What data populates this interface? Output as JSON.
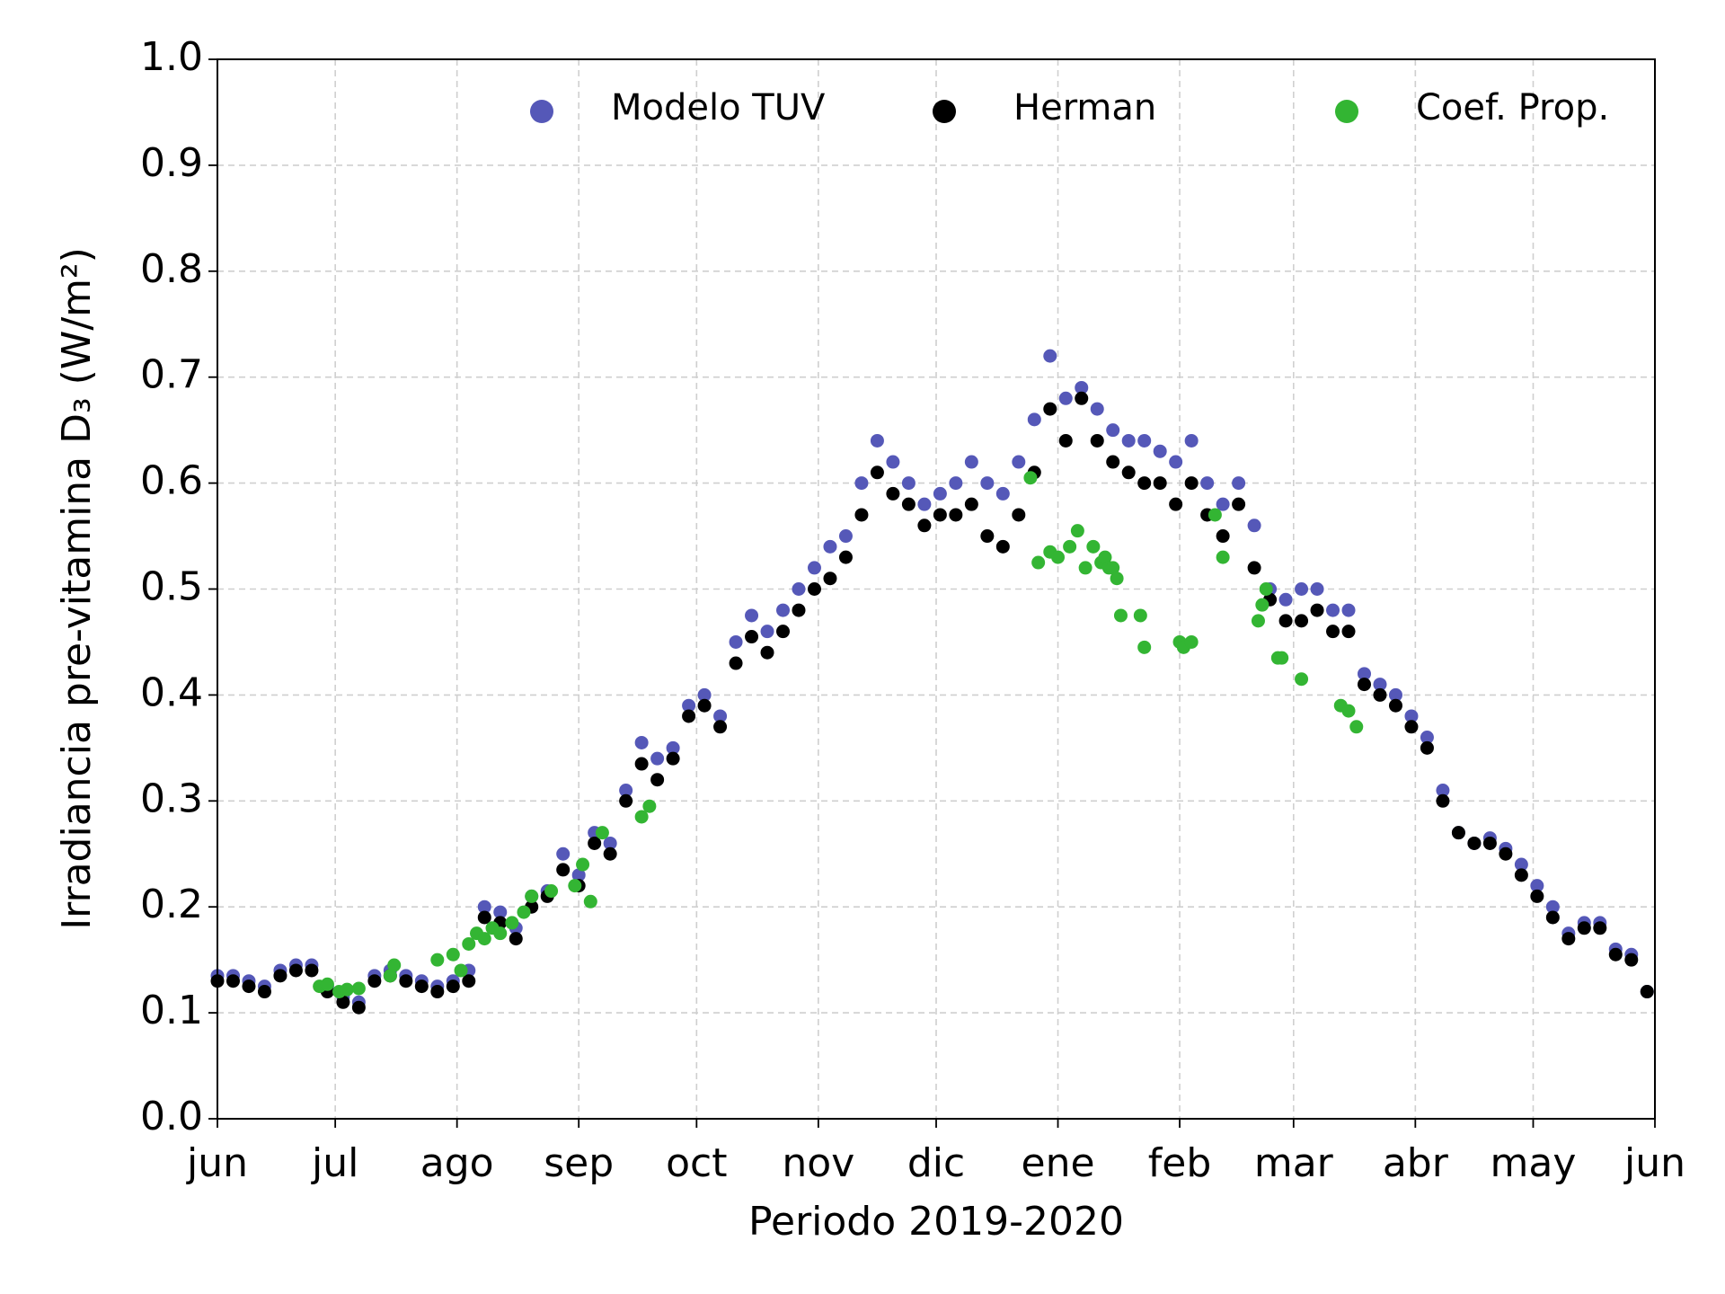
{
  "chart_data": {
    "type": "scatter",
    "x_label": "Periodo 2019-2020",
    "y_label": "Irradiancia pre-vitamina D₃ (W/m²)",
    "xlim": [
      0,
      366
    ],
    "ylim": [
      0,
      1.0
    ],
    "xticks": [
      {
        "value": 0,
        "label": "jun"
      },
      {
        "value": 30,
        "label": "jul"
      },
      {
        "value": 61,
        "label": "ago"
      },
      {
        "value": 92,
        "label": "sep"
      },
      {
        "value": 122,
        "label": "oct"
      },
      {
        "value": 153,
        "label": "nov"
      },
      {
        "value": 183,
        "label": "dic"
      },
      {
        "value": 214,
        "label": "ene"
      },
      {
        "value": 245,
        "label": "feb"
      },
      {
        "value": 274,
        "label": "mar"
      },
      {
        "value": 305,
        "label": "abr"
      },
      {
        "value": 335,
        "label": "may"
      },
      {
        "value": 366,
        "label": "jun"
      }
    ],
    "yticks": [
      {
        "value": 0,
        "label": "0.0"
      },
      0.1,
      0.2,
      0.3,
      0.4,
      0.5,
      0.6,
      0.7,
      0.8,
      0.9,
      {
        "value": 1,
        "label": "1.0"
      }
    ],
    "grid": true,
    "legend": "upper right",
    "series": [
      {
        "name": "Modelo TUV",
        "color": "#5558b8",
        "x": [
          0,
          4,
          8,
          12,
          16,
          20,
          24,
          28,
          32,
          36,
          40,
          44,
          48,
          52,
          56,
          60,
          64,
          68,
          72,
          76,
          80,
          84,
          88,
          92,
          96,
          100,
          104,
          108,
          112,
          116,
          120,
          124,
          128,
          132,
          136,
          140,
          144,
          148,
          152,
          156,
          160,
          164,
          168,
          172,
          176,
          180,
          184,
          188,
          192,
          196,
          200,
          204,
          208,
          212,
          216,
          220,
          224,
          228,
          232,
          236,
          240,
          244,
          248,
          252,
          256,
          260,
          264,
          268,
          272,
          276,
          280,
          284,
          288,
          292,
          296,
          300,
          304,
          308,
          312,
          316,
          320,
          324,
          328,
          332,
          336,
          340,
          344,
          348,
          352,
          356,
          360,
          364
        ],
        "values": [
          0.135,
          0.135,
          0.13,
          0.125,
          0.14,
          0.145,
          0.145,
          0.125,
          0.115,
          0.11,
          0.135,
          0.14,
          0.135,
          0.13,
          0.125,
          0.13,
          0.14,
          0.2,
          0.195,
          0.18,
          0.21,
          0.215,
          0.25,
          0.23,
          0.27,
          0.26,
          0.31,
          0.355,
          0.34,
          0.35,
          0.39,
          0.4,
          0.38,
          0.45,
          0.475,
          0.46,
          0.48,
          0.5,
          0.52,
          0.54,
          0.55,
          0.6,
          0.64,
          0.62,
          0.6,
          0.58,
          0.59,
          0.6,
          0.62,
          0.6,
          0.59,
          0.62,
          0.66,
          0.72,
          0.68,
          0.69,
          0.67,
          0.65,
          0.64,
          0.64,
          0.63,
          0.62,
          0.64,
          0.6,
          0.58,
          0.6,
          0.56,
          0.5,
          0.49,
          0.5,
          0.5,
          0.48,
          0.48,
          0.42,
          0.41,
          0.4,
          0.38,
          0.36,
          0.31,
          0.27,
          0.26,
          0.265,
          0.255,
          0.24,
          0.22,
          0.2,
          0.175,
          0.185,
          0.185,
          0.16,
          0.155,
          0.12
        ]
      },
      {
        "name": "Herman",
        "color": "#000000",
        "x": [
          0,
          4,
          8,
          12,
          16,
          20,
          24,
          28,
          32,
          36,
          40,
          44,
          48,
          52,
          56,
          60,
          64,
          68,
          72,
          76,
          80,
          84,
          88,
          92,
          96,
          100,
          104,
          108,
          112,
          116,
          120,
          124,
          128,
          132,
          136,
          140,
          144,
          148,
          152,
          156,
          160,
          164,
          168,
          172,
          176,
          180,
          184,
          188,
          192,
          196,
          200,
          204,
          208,
          212,
          216,
          220,
          224,
          228,
          232,
          236,
          240,
          244,
          248,
          252,
          256,
          260,
          264,
          268,
          272,
          276,
          280,
          284,
          288,
          292,
          296,
          300,
          304,
          308,
          312,
          316,
          320,
          324,
          328,
          332,
          336,
          340,
          344,
          348,
          352,
          356,
          360,
          364
        ],
        "values": [
          0.13,
          0.13,
          0.125,
          0.12,
          0.135,
          0.14,
          0.14,
          0.12,
          0.11,
          0.105,
          0.13,
          0.135,
          0.13,
          0.125,
          0.12,
          0.125,
          0.13,
          0.19,
          0.185,
          0.17,
          0.2,
          0.21,
          0.235,
          0.22,
          0.26,
          0.25,
          0.3,
          0.335,
          0.32,
          0.34,
          0.38,
          0.39,
          0.37,
          0.43,
          0.455,
          0.44,
          0.46,
          0.48,
          0.5,
          0.51,
          0.53,
          0.57,
          0.61,
          0.59,
          0.58,
          0.56,
          0.57,
          0.57,
          0.58,
          0.55,
          0.54,
          0.57,
          0.61,
          0.67,
          0.64,
          0.68,
          0.64,
          0.62,
          0.61,
          0.6,
          0.6,
          0.58,
          0.6,
          0.57,
          0.55,
          0.58,
          0.52,
          0.49,
          0.47,
          0.47,
          0.48,
          0.46,
          0.46,
          0.41,
          0.4,
          0.39,
          0.37,
          0.35,
          0.3,
          0.27,
          0.26,
          0.26,
          0.25,
          0.23,
          0.21,
          0.19,
          0.17,
          0.18,
          0.18,
          0.155,
          0.15,
          0.12
        ]
      },
      {
        "name": "Coef. Prop.",
        "color": "#33b533",
        "x": [
          26,
          28,
          31,
          33,
          36,
          44,
          45,
          56,
          60,
          62,
          64,
          66,
          68,
          70,
          72,
          75,
          78,
          80,
          85,
          91,
          93,
          95,
          98,
          108,
          110,
          207,
          209,
          212,
          214,
          217,
          219,
          221,
          223,
          225,
          226,
          227,
          228,
          229,
          230,
          235,
          236,
          245,
          246,
          248,
          254,
          256,
          265,
          266,
          267,
          270,
          271,
          276,
          286,
          288,
          290
        ],
        "values": [
          0.125,
          0.127,
          0.12,
          0.122,
          0.123,
          0.135,
          0.145,
          0.15,
          0.155,
          0.14,
          0.165,
          0.175,
          0.17,
          0.18,
          0.175,
          0.185,
          0.195,
          0.21,
          0.215,
          0.22,
          0.24,
          0.205,
          0.27,
          0.285,
          0.295,
          0.605,
          0.525,
          0.535,
          0.53,
          0.54,
          0.555,
          0.52,
          0.54,
          0.525,
          0.53,
          0.52,
          0.52,
          0.51,
          0.475,
          0.475,
          0.445,
          0.45,
          0.445,
          0.45,
          0.57,
          0.53,
          0.47,
          0.485,
          0.5,
          0.435,
          0.435,
          0.415,
          0.39,
          0.385,
          0.37
        ]
      }
    ]
  }
}
